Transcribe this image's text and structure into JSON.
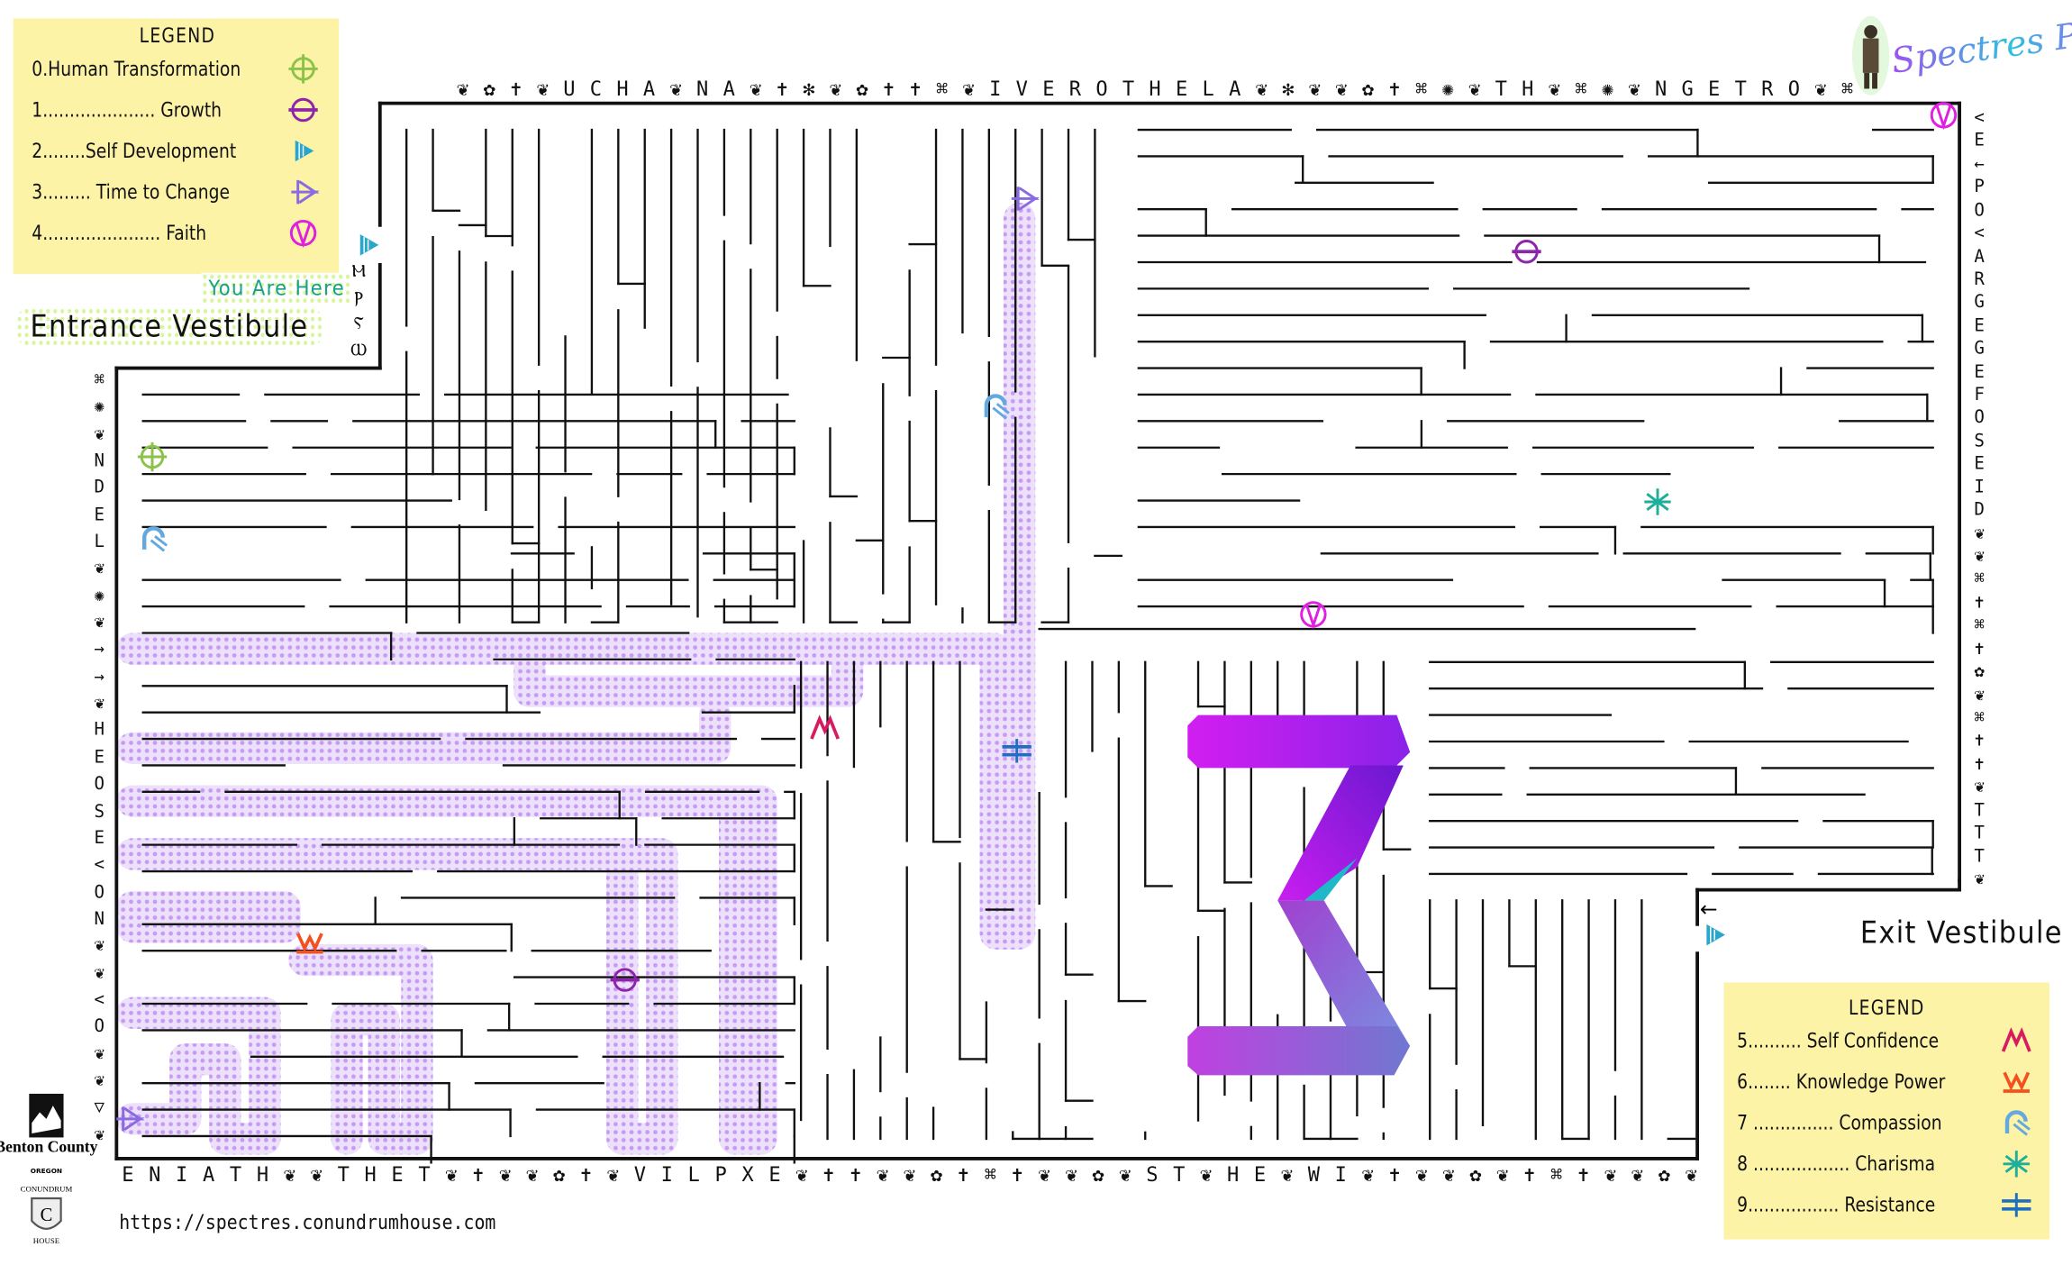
{
  "legend_top": {
    "title": "LEGEND",
    "items": [
      {
        "label": "0.Human Transformation",
        "icon": "circle-cross-icon",
        "color": "#8bc34a"
      },
      {
        "label": "1..................... Growth",
        "icon": "circle-bar-icon",
        "color": "#8e24aa"
      },
      {
        "label": "2........Self Development",
        "icon": "striped-triangle-icon",
        "color": "#29a6c9"
      },
      {
        "label": "3......... Time to Change",
        "icon": "crossed-triangle-icon",
        "color": "#8a6be0"
      },
      {
        "label": "4...................... Faith",
        "icon": "circle-v-icon",
        "color": "#e020e0"
      }
    ]
  },
  "legend_bottom": {
    "title": "LEGEND",
    "items": [
      {
        "label": "5.......... Self Confidence",
        "icon": "m-zigzag-icon",
        "color": "#d81b60"
      },
      {
        "label": "6........ Knowledge Power",
        "icon": "crown-w-icon",
        "color": "#f4511e"
      },
      {
        "label": "7 ............... Compassion",
        "icon": "arch-icon",
        "color": "#64a8e0"
      },
      {
        "label": "8 .................. Charisma",
        "icon": "asterisk-icon",
        "color": "#1fae9a"
      },
      {
        "label": "9................. Resistance",
        "icon": "double-bar-cross-icon",
        "color": "#1e6fc0"
      }
    ]
  },
  "labels": {
    "you_are_here": "You Are Here",
    "entrance": "Entrance Vestibule",
    "exit": "Exit Vestibule",
    "url": "https://spectres.conundrumhouse.com"
  },
  "logos": {
    "spectres_past": "Spectres Past",
    "benton_county": "Benton County",
    "benton_state": "OREGON",
    "conundrum_top": "CONUNDRUM",
    "conundrum_letter": "C",
    "conundrum_bottom": "HOUSE"
  },
  "border_text": {
    "top": "❦✿✝❦UCHA❦NA❦✝✻❦✿✝✝⌘❦IVEROTHELA❦✻❦❦✿✝⌘✺❦TH❦⌘✺❦NGETRO❦⌘",
    "bottom": "ENIATH❦❦THET❦✝❦❦✿✝❦VILPXE❦✝✝❦❦✿✝⌘✝❦❦✿❦ST❦HE❦WI❦✝❦❦✿❦✝⌘✝❦❦✿❦",
    "left": "⌘✺❦NDEL❦✺❦→→❦HEOSE<ON❦❦<O❦❦▽❦",
    "right": "<E←PO<ARGEGEFOSEID❦❦⌘✝⌘✝✿❦⌘✝✝❦TTT❦",
    "entrance_glyphs": "ⲘⲢⲊⲰ"
  },
  "maze": {
    "wall_color": "#111111",
    "solved_path_color": "#c79af3",
    "markers": [
      {
        "type": "growth",
        "icon": "circle-bar-icon"
      },
      {
        "type": "growth",
        "icon": "circle-bar-icon"
      },
      {
        "type": "faith",
        "icon": "circle-v-icon"
      },
      {
        "type": "faith",
        "icon": "circle-v-icon"
      },
      {
        "type": "human-transformation",
        "icon": "circle-cross-icon"
      },
      {
        "type": "compassion",
        "icon": "arch-icon"
      },
      {
        "type": "compassion",
        "icon": "arch-icon"
      },
      {
        "type": "charisma",
        "icon": "asterisk-icon"
      },
      {
        "type": "time-to-change",
        "icon": "crossed-triangle-icon"
      },
      {
        "type": "time-to-change",
        "icon": "crossed-triangle-icon"
      },
      {
        "type": "resistance",
        "icon": "double-bar-cross-icon"
      },
      {
        "type": "self-confidence",
        "icon": "m-zigzag-icon"
      },
      {
        "type": "knowledge-power",
        "icon": "crown-w-icon"
      },
      {
        "type": "self-development",
        "icon": "striped-triangle-icon"
      },
      {
        "type": "self-development",
        "icon": "striped-triangle-icon"
      }
    ],
    "exit_arrow": "←",
    "sigma_colors": [
      "#d21ef0",
      "#7a20e0",
      "#1eb8c8",
      "#7a8ee0"
    ]
  }
}
